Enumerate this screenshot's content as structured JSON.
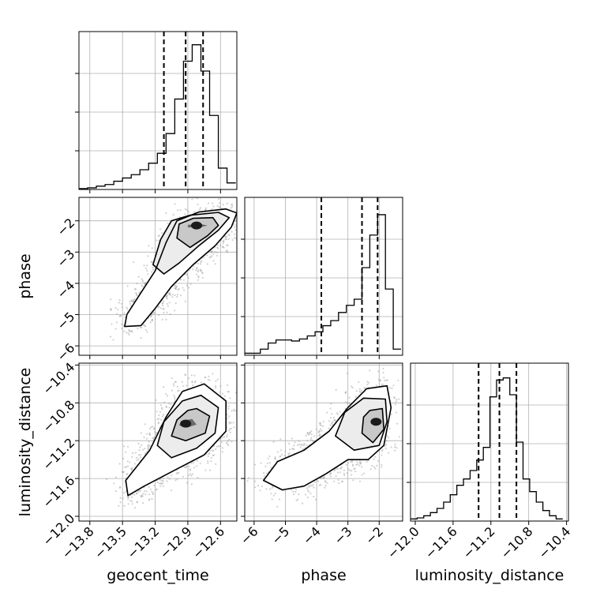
{
  "chart_data": {
    "type": "corner",
    "parameters": [
      "geocent_time",
      "phase",
      "luminosity_distance"
    ],
    "axis_labels": {
      "x": [
        "geocent_time",
        "phase",
        "luminosity_distance"
      ],
      "y": [
        "",
        "phase",
        "luminosity_distance"
      ]
    },
    "ranges": {
      "geocent_time": [
        -13.9,
        -12.45
      ],
      "phase": [
        -6.3,
        -1.25
      ],
      "luminosity_distance": [
        -12.05,
        -10.38
      ]
    },
    "ticks": {
      "geocent_time": {
        "values": [
          -13.8,
          -13.5,
          -13.2,
          -12.9,
          -12.6
        ],
        "labels": [
          "−13.8",
          "−13.5",
          "−13.2",
          "−12.9",
          "−12.6"
        ]
      },
      "phase": {
        "values": [
          -6,
          -5,
          -4,
          -3,
          -2
        ],
        "labels": [
          "−6",
          "−5",
          "−4",
          "−3",
          "−2"
        ]
      },
      "luminosity_distance": {
        "values": [
          -12.0,
          -11.6,
          -11.2,
          -10.8,
          -10.4
        ],
        "labels": [
          "−12.0",
          "−11.6",
          "−11.2",
          "−10.8",
          "−10.4"
        ]
      }
    },
    "grid": true,
    "histograms": [
      {
        "param": "geocent_time",
        "bin_edges": [
          -13.9,
          -13.82,
          -13.74,
          -13.66,
          -13.58,
          -13.5,
          -13.42,
          -13.34,
          -13.26,
          -13.18,
          -13.1,
          -13.02,
          -12.94,
          -12.86,
          -12.78,
          -12.7,
          -12.62,
          -12.54,
          -12.46
        ],
        "counts": [
          0.5,
          1,
          2,
          3,
          5,
          7,
          9,
          12,
          16,
          22,
          34,
          55,
          78,
          88,
          72,
          45,
          13,
          4
        ],
        "ymax": 96,
        "quantiles": [
          -13.12,
          -12.92,
          -12.76
        ]
      },
      {
        "param": "phase",
        "bin_edges": [
          -6.3,
          -6.05,
          -5.8,
          -5.55,
          -5.3,
          -5.05,
          -4.8,
          -4.55,
          -4.3,
          -4.05,
          -3.8,
          -3.55,
          -3.3,
          -3.05,
          -2.8,
          -2.55,
          -2.3,
          -2.05,
          -1.8,
          -1.55,
          -1.3
        ],
        "counts": [
          2,
          2,
          6,
          12,
          15,
          15,
          14,
          16,
          19,
          23,
          29,
          34,
          42,
          49,
          55,
          86,
          118,
          138,
          65,
          6
        ],
        "ymax": 155,
        "quantiles": [
          -3.85,
          -2.55,
          -2.05
        ]
      },
      {
        "param": "luminosity_distance",
        "bin_edges": [
          -12.05,
          -11.98,
          -11.91,
          -11.84,
          -11.77,
          -11.7,
          -11.63,
          -11.56,
          -11.49,
          -11.42,
          -11.35,
          -11.28,
          -11.21,
          -11.14,
          -11.07,
          -11.0,
          -10.93,
          -10.86,
          -10.79,
          -10.72,
          -10.65,
          -10.58,
          -10.51,
          -10.44
        ],
        "counts": [
          2,
          3,
          5,
          8,
          12,
          18,
          25,
          34,
          40,
          48,
          58,
          70,
          118,
          134,
          136,
          120,
          75,
          40,
          28,
          18,
          10,
          5,
          2
        ],
        "ymax": 150,
        "quantiles": [
          -11.33,
          -11.11,
          -10.93
        ]
      }
    ],
    "scatter_panels": [
      {
        "x": "geocent_time",
        "y": "phase",
        "peak": {
          "x": -12.82,
          "y": -2.15
        }
      },
      {
        "x": "geocent_time",
        "y": "luminosity_distance",
        "peak": {
          "x": -12.92,
          "y": -11.02
        }
      },
      {
        "x": "phase",
        "y": "luminosity_distance",
        "peak": {
          "x": -2.1,
          "y": -11.0
        }
      }
    ]
  }
}
